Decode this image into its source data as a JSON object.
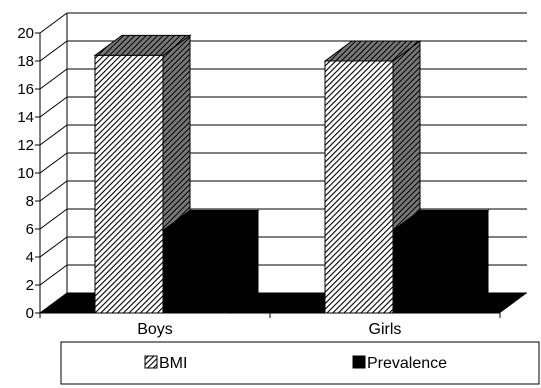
{
  "chart_data": {
    "type": "bar",
    "categories": [
      "Boys",
      "Girls"
    ],
    "series": [
      {
        "name": "BMI",
        "values": [
          18.4,
          18.0
        ]
      },
      {
        "name": "Prevalence",
        "values": [
          5.9,
          5.9
        ]
      }
    ],
    "ylim": [
      0,
      20
    ],
    "yticks": [
      "0",
      "2",
      "4",
      "6",
      "8",
      "10",
      "12",
      "14",
      "16",
      "18",
      "20"
    ],
    "grid": true,
    "legend_position": "bottom",
    "colors": {
      "BMI": "#ffffff",
      "Prevalence": "#000000"
    }
  }
}
